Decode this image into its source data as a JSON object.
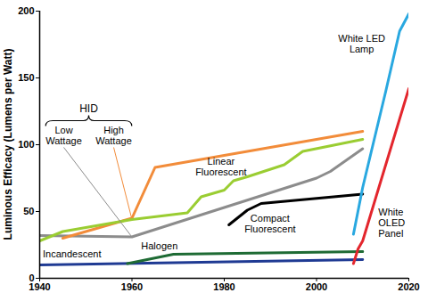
{
  "chart_data": {
    "type": "line",
    "ylabel": "Luminous Efficacy (Lumens per Watt)",
    "xlim": [
      1940,
      2020
    ],
    "xticks": [
      1940,
      1960,
      1980,
      2000,
      2020
    ],
    "ylim": [
      0,
      200
    ],
    "yticks": [
      0,
      50,
      100,
      150,
      200
    ],
    "grid": false,
    "annotations": [
      {
        "text": "HID"
      }
    ],
    "series": [
      {
        "name": "Incandescent",
        "color": "#1f3a93",
        "x": [
          1940,
          2010
        ],
        "values": [
          10,
          14
        ]
      },
      {
        "name": "Halogen",
        "color": "#1e6b34",
        "x": [
          1959,
          1969,
          2010
        ],
        "values": [
          11,
          18,
          20
        ]
      },
      {
        "name": "Low Wattage",
        "color": "#8c8c8c",
        "x": [
          1940,
          1960,
          2000,
          2003,
          2010
        ],
        "values": [
          32,
          31,
          75,
          80,
          97
        ]
      },
      {
        "name": "High Wattage",
        "color": "#f28c3a",
        "x": [
          1945,
          1960,
          1965,
          2010
        ],
        "values": [
          30,
          45,
          83,
          110
        ]
      },
      {
        "name": "Linear Fluorescent",
        "color": "#9acd32",
        "x": [
          1940,
          1945,
          1960,
          1972,
          1975,
          1980,
          1982,
          1985,
          1993,
          1997,
          2010
        ],
        "values": [
          28,
          35,
          44,
          49,
          61,
          66,
          73,
          76,
          85,
          95,
          104
        ]
      },
      {
        "name": "Compact Fluorescent",
        "color": "#000000",
        "x": [
          1981,
          1985,
          1988,
          2010
        ],
        "values": [
          40,
          51,
          56,
          63
        ]
      },
      {
        "name": "White LED Lamp",
        "color": "#29a8e0",
        "x": [
          2008,
          2010,
          2015,
          2018,
          2020
        ],
        "values": [
          33,
          68,
          140,
          185,
          198
        ]
      },
      {
        "name": "White OLED Panel",
        "color": "#e3262d",
        "x": [
          2008,
          2009,
          2010,
          2020
        ],
        "values": [
          11,
          22,
          28,
          142
        ]
      }
    ]
  }
}
